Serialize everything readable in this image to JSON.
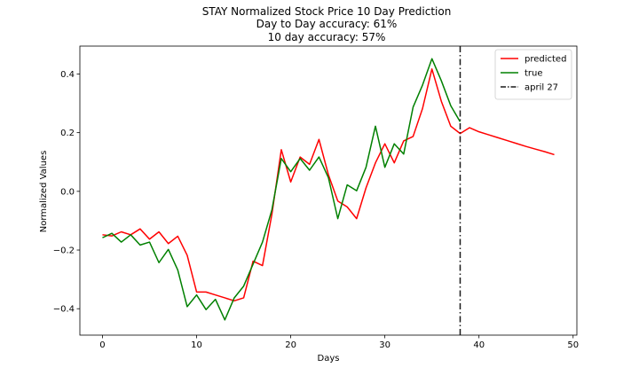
{
  "chart_data": {
    "type": "line",
    "title": [
      "STAY Normalized Stock Price 10 Day Prediction",
      "Day to Day accuracy: 61%",
      "10 day accuracy: 57%"
    ],
    "xlabel": "Days",
    "ylabel": "Normalized Values",
    "xlim": [
      -2.4,
      50.4
    ],
    "ylim": [
      -0.49,
      0.495
    ],
    "xticks": [
      0,
      10,
      20,
      30,
      40,
      50
    ],
    "yticks": [
      -0.4,
      -0.2,
      0.0,
      0.2,
      0.4
    ],
    "ytick_labels": [
      "−0.4",
      "−0.2",
      "0.0",
      "0.2",
      "0.4"
    ],
    "legend_position": "upper-right",
    "series": [
      {
        "name": "predicted",
        "color": "#ff0000",
        "style": "solid",
        "x": [
          0,
          1,
          2,
          3,
          4,
          5,
          6,
          7,
          8,
          9,
          10,
          11,
          12,
          13,
          14,
          15,
          16,
          17,
          18,
          19,
          20,
          21,
          22,
          23,
          24,
          25,
          26,
          27,
          28,
          29,
          30,
          31,
          32,
          33,
          34,
          35,
          36,
          37,
          38,
          39,
          40,
          41,
          42,
          43,
          44,
          45,
          46,
          47,
          48
        ],
        "y": [
          -0.148,
          -0.152,
          -0.138,
          -0.148,
          -0.128,
          -0.163,
          -0.138,
          -0.178,
          -0.153,
          -0.218,
          -0.343,
          -0.343,
          -0.353,
          -0.363,
          -0.373,
          -0.363,
          -0.238,
          -0.253,
          -0.078,
          0.142,
          0.032,
          0.117,
          0.092,
          0.177,
          0.057,
          -0.033,
          -0.053,
          -0.093,
          0.012,
          0.097,
          0.162,
          0.097,
          0.172,
          0.187,
          0.282,
          0.417,
          0.307,
          0.222,
          0.197,
          0.217,
          0.203,
          0.193,
          0.183,
          0.173,
          0.163,
          0.153,
          0.144,
          0.135,
          0.125
        ]
      },
      {
        "name": "true",
        "color": "#008000",
        "style": "solid",
        "x": [
          0,
          1,
          2,
          3,
          4,
          5,
          6,
          7,
          8,
          9,
          10,
          11,
          12,
          13,
          14,
          15,
          16,
          17,
          18,
          19,
          20,
          21,
          22,
          23,
          24,
          25,
          26,
          27,
          28,
          29,
          30,
          31,
          32,
          33,
          34,
          35,
          36,
          37,
          38
        ],
        "y": [
          -0.158,
          -0.143,
          -0.173,
          -0.148,
          -0.183,
          -0.173,
          -0.243,
          -0.198,
          -0.268,
          -0.393,
          -0.353,
          -0.403,
          -0.368,
          -0.438,
          -0.363,
          -0.323,
          -0.248,
          -0.173,
          -0.063,
          0.112,
          0.067,
          0.112,
          0.072,
          0.117,
          0.047,
          -0.093,
          0.022,
          0.002,
          0.082,
          0.222,
          0.082,
          0.162,
          0.127,
          0.287,
          0.362,
          0.452,
          0.377,
          0.292,
          0.237
        ]
      }
    ],
    "vlines": [
      {
        "name": "april 27",
        "x": 38,
        "color": "#1a1a1a",
        "style": "dashdot"
      }
    ]
  }
}
